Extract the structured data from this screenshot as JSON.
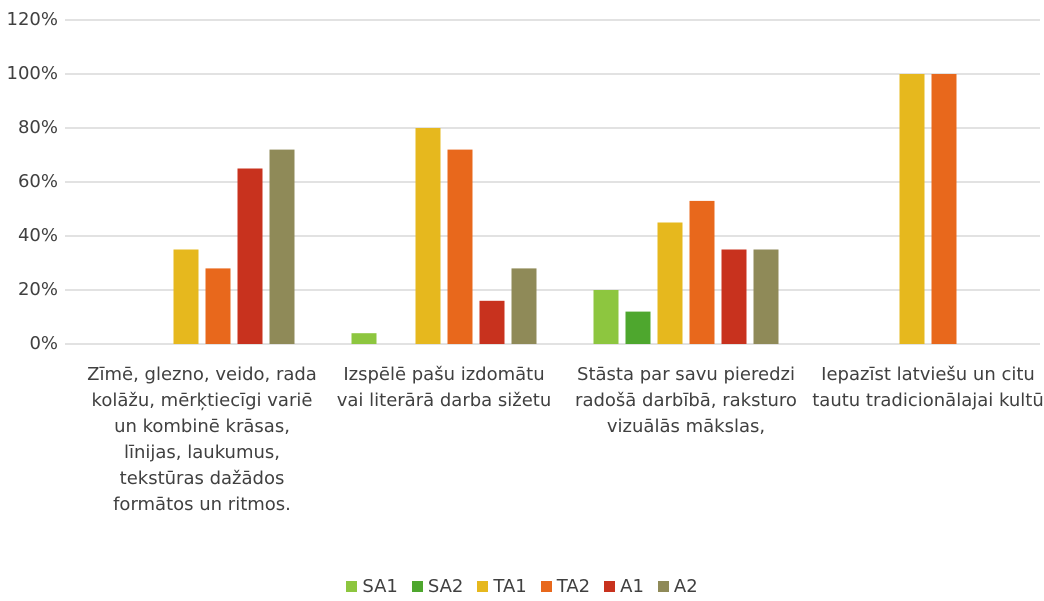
{
  "chart_data": {
    "type": "bar",
    "categories": [
      "Zīmē, glezno, veido, rada kolāžu, mērķtiecīgi variē un kombinē krāsas, līnijas, laukumus, tekstūras dažādos formātos un ritmos.",
      "Izspēlē pašu izdomātu vai literārā darba sižetu",
      "Stāsta par savu pieredzi radošā darbībā, raksturo vizuālās mākslas,",
      "Iepazīst latviešu un citu tautu tradicionālajai kultū"
    ],
    "series": [
      {
        "name": "SA1",
        "color": "#8dc63f",
        "values": [
          0,
          4,
          20,
          0
        ]
      },
      {
        "name": "SA2",
        "color": "#4ea72e",
        "values": [
          0,
          0,
          12,
          0
        ]
      },
      {
        "name": "TA1",
        "color": "#e6b81e",
        "values": [
          35,
          80,
          45,
          100
        ]
      },
      {
        "name": "TA2",
        "color": "#e8681c",
        "values": [
          28,
          72,
          53,
          100
        ]
      },
      {
        "name": "A1",
        "color": "#c8321e",
        "values": [
          65,
          16,
          35,
          0
        ]
      },
      {
        "name": "A2",
        "color": "#8f8a58",
        "values": [
          72,
          28,
          35,
          0
        ]
      }
    ],
    "ylim": [
      0,
      120
    ],
    "yticks": [
      {
        "value": 0,
        "label": "0%"
      },
      {
        "value": 20,
        "label": "20%"
      },
      {
        "value": 40,
        "label": "40%"
      },
      {
        "value": 60,
        "label": "60%"
      },
      {
        "value": 80,
        "label": "80%"
      },
      {
        "value": 100,
        "label": "100%"
      },
      {
        "value": 120,
        "label": "120%"
      }
    ],
    "grid": true,
    "legend": "bottom"
  }
}
